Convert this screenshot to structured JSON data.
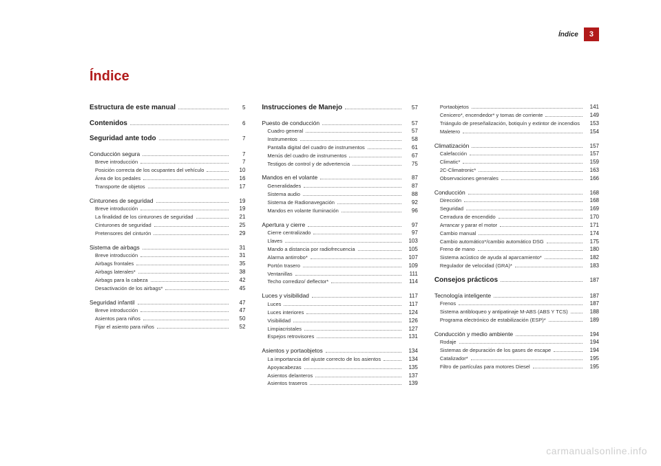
{
  "header": {
    "section": "Índice",
    "page": "3"
  },
  "title": "Índice",
  "watermark": "carmanualsonline.info",
  "columns": [
    [
      {
        "level": 0,
        "label": "Estructura de este manual",
        "page": "5"
      },
      {
        "spacer": true
      },
      {
        "level": 0,
        "label": "Contenidos",
        "page": "6"
      },
      {
        "spacer": true
      },
      {
        "level": 0,
        "label": "Seguridad ante todo",
        "page": "7"
      },
      {
        "spacer": true
      },
      {
        "level": 1,
        "label": "Conducción segura",
        "page": "7"
      },
      {
        "level": 2,
        "label": "Breve introducción",
        "page": "7"
      },
      {
        "level": 2,
        "label": "Posición correcta de los ocupantes del vehículo",
        "page": "10"
      },
      {
        "level": 2,
        "label": "Área de los pedales",
        "page": "16"
      },
      {
        "level": 2,
        "label": "Transporte de objetos",
        "page": "17"
      },
      {
        "spacer": true
      },
      {
        "level": 1,
        "label": "Cinturones de seguridad",
        "page": "19"
      },
      {
        "level": 2,
        "label": "Breve introducción",
        "page": "19"
      },
      {
        "level": 2,
        "label": "La finalidad de los cinturones de seguridad",
        "page": "21"
      },
      {
        "level": 2,
        "label": "Cinturones de seguridad",
        "page": "25"
      },
      {
        "level": 2,
        "label": "Pretensores del cinturón",
        "page": "29"
      },
      {
        "spacer": true
      },
      {
        "level": 1,
        "label": "Sistema de airbags",
        "page": "31"
      },
      {
        "level": 2,
        "label": "Breve introducción",
        "page": "31"
      },
      {
        "level": 2,
        "label": "Airbags frontales",
        "page": "35"
      },
      {
        "level": 2,
        "label": "Airbags laterales*",
        "page": "38"
      },
      {
        "level": 2,
        "label": "Airbags para la cabeza",
        "page": "42"
      },
      {
        "level": 2,
        "label": "Desactivación de los airbags*",
        "page": "45"
      },
      {
        "spacer": true
      },
      {
        "level": 1,
        "label": "Seguridad infantil",
        "page": "47"
      },
      {
        "level": 2,
        "label": "Breve introducción",
        "page": "47"
      },
      {
        "level": 2,
        "label": "Asientos para niños",
        "page": "50"
      },
      {
        "level": 2,
        "label": "Fijar el asiento para niños",
        "page": "52"
      }
    ],
    [
      {
        "level": 0,
        "label": "Instrucciones de Manejo",
        "page": "57"
      },
      {
        "spacer": true
      },
      {
        "level": 1,
        "label": "Puesto de conducción",
        "page": "57"
      },
      {
        "level": 2,
        "label": "Cuadro general",
        "page": "57"
      },
      {
        "level": 2,
        "label": "Instrumentos",
        "page": "58"
      },
      {
        "level": 2,
        "label": "Pantalla digital del cuadro de instrumentos",
        "page": "61"
      },
      {
        "level": 2,
        "label": "Menús del cuadro de instrumentos",
        "page": "67"
      },
      {
        "level": 2,
        "label": "Testigos de control y de advertencia",
        "page": "75"
      },
      {
        "spacer": true
      },
      {
        "level": 1,
        "label": "Mandos en el volante",
        "page": "87"
      },
      {
        "level": 2,
        "label": "Generalidades",
        "page": "87"
      },
      {
        "level": 2,
        "label": "Sistema audio",
        "page": "88"
      },
      {
        "level": 2,
        "label": "Sistema de Radionavegación",
        "page": "92"
      },
      {
        "level": 2,
        "label": "Mandos en volante Iluminación",
        "page": "96"
      },
      {
        "spacer": true
      },
      {
        "level": 1,
        "label": "Apertura y cierre",
        "page": "97"
      },
      {
        "level": 2,
        "label": "Cierre centralizado",
        "page": "97"
      },
      {
        "level": 2,
        "label": "Llaves",
        "page": "103"
      },
      {
        "level": 2,
        "label": "Mando a distancia por radiofrecuencia",
        "page": "105"
      },
      {
        "level": 2,
        "label": "Alarma antirrobo*",
        "page": "107"
      },
      {
        "level": 2,
        "label": "Portón trasero",
        "page": "109"
      },
      {
        "level": 2,
        "label": "Ventanillas",
        "page": "111"
      },
      {
        "level": 2,
        "label": "Techo corredizo/ deflector*",
        "page": "114"
      },
      {
        "spacer": true
      },
      {
        "level": 1,
        "label": "Luces y visibilidad",
        "page": "117"
      },
      {
        "level": 2,
        "label": "Luces",
        "page": "117"
      },
      {
        "level": 2,
        "label": "Luces interiores",
        "page": "124"
      },
      {
        "level": 2,
        "label": "Visibilidad",
        "page": "126"
      },
      {
        "level": 2,
        "label": "Limpiacristales",
        "page": "127"
      },
      {
        "level": 2,
        "label": "Espejos retrovisores",
        "page": "131"
      },
      {
        "spacer": true
      },
      {
        "level": 1,
        "label": "Asientos y portaobjetos",
        "page": "134"
      },
      {
        "level": 2,
        "label": "La importancia del ajuste correcto de los asientos",
        "page": "134"
      },
      {
        "level": 2,
        "label": "Apoyacabezas",
        "page": "135"
      },
      {
        "level": 2,
        "label": "Asientos delanteros",
        "page": "137"
      },
      {
        "level": 2,
        "label": "Asientos traseros",
        "page": "139"
      }
    ],
    [
      {
        "level": 2,
        "label": "Portaobjetos",
        "page": "141"
      },
      {
        "level": 2,
        "label": "Cenicero*, encendedor* y tomas de corriente",
        "page": "149"
      },
      {
        "level": 2,
        "label": "Triángulo de preseñalización, botiquín y extintor de incendios",
        "page": "153"
      },
      {
        "level": 2,
        "label": "Maletero",
        "page": "154"
      },
      {
        "spacer": true
      },
      {
        "level": 1,
        "label": "Climatización",
        "page": "157"
      },
      {
        "level": 2,
        "label": "Calefacción",
        "page": "157"
      },
      {
        "level": 2,
        "label": "Climatic*",
        "page": "159"
      },
      {
        "level": 2,
        "label": "2C-Climatronic*",
        "page": "163"
      },
      {
        "level": 2,
        "label": "Observaciones generales",
        "page": "166"
      },
      {
        "spacer": true
      },
      {
        "level": 1,
        "label": "Conducción",
        "page": "168"
      },
      {
        "level": 2,
        "label": "Dirección",
        "page": "168"
      },
      {
        "level": 2,
        "label": "Seguridad",
        "page": "169"
      },
      {
        "level": 2,
        "label": "Cerradura de encendido",
        "page": "170"
      },
      {
        "level": 2,
        "label": "Arrancar y parar el motor",
        "page": "171"
      },
      {
        "level": 2,
        "label": "Cambio manual",
        "page": "174"
      },
      {
        "level": 2,
        "label": "Cambio automático*/cambio automático DSG",
        "page": "175"
      },
      {
        "level": 2,
        "label": "Freno de mano",
        "page": "180"
      },
      {
        "level": 2,
        "label": "Sistema acústico de ayuda al aparcamiento*",
        "page": "182"
      },
      {
        "level": 2,
        "label": "Regulador de velocidad (GRA)*",
        "page": "183"
      },
      {
        "spacer": true
      },
      {
        "level": 0,
        "label": "Consejos prácticos",
        "page": "187"
      },
      {
        "spacer": true
      },
      {
        "level": 1,
        "label": "Tecnología inteligente",
        "page": "187"
      },
      {
        "level": 2,
        "label": "Frenos",
        "page": "187"
      },
      {
        "level": 2,
        "label": "Sistema antibloqueo y antipatinaje M-ABS (ABS Y TCS)",
        "page": "188"
      },
      {
        "level": 2,
        "label": "Programa electrónico de estabilización (ESP)*",
        "page": "189"
      },
      {
        "spacer": true
      },
      {
        "level": 1,
        "label": "Conducción y medio ambiente",
        "page": "194"
      },
      {
        "level": 2,
        "label": "Rodaje",
        "page": "194"
      },
      {
        "level": 2,
        "label": "Sistemas de depuración de los gases de escape",
        "page": "194"
      },
      {
        "level": 2,
        "label": "Catalizador*",
        "page": "195"
      },
      {
        "level": 2,
        "label": "Filtro de partículas para motores Diesel",
        "page": "195"
      }
    ]
  ]
}
